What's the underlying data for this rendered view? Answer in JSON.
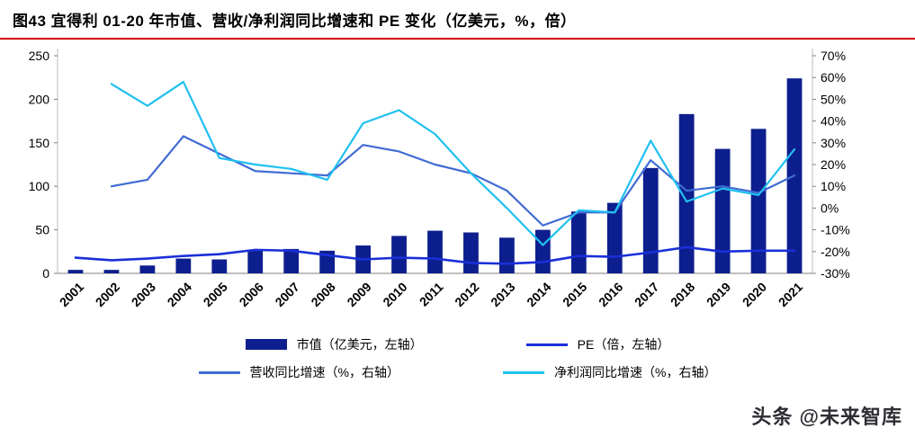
{
  "title": "图43 宜得利 01-20 年市值、营收/净利润同比增速和 PE 变化（亿美元，%，倍）",
  "watermark": "头条 @未来智库",
  "colors": {
    "title_underline": "#d40000",
    "axis_line": "#7f7f7f",
    "bar": "#0d1f8e",
    "pe_line": "#1a2fd8",
    "revenue_line": "#3f6bd4",
    "profit_line": "#20c0f0"
  },
  "chart_data": {
    "type": "combo",
    "categories": [
      "2001",
      "2002",
      "2003",
      "2004",
      "2005",
      "2006",
      "2007",
      "2008",
      "2009",
      "2010",
      "2011",
      "2012",
      "2013",
      "2014",
      "2015",
      "2016",
      "2017",
      "2018",
      "2019",
      "2020",
      "2021"
    ],
    "series": [
      {
        "name": "市值（亿美元，左轴）",
        "type": "bar",
        "axis": "left",
        "color": "#0d1f8e",
        "values": [
          4,
          4,
          9,
          17,
          16,
          27,
          28,
          26,
          32,
          43,
          49,
          47,
          41,
          50,
          71,
          81,
          121,
          183,
          143,
          166,
          224
        ]
      },
      {
        "name": "PE（倍，左轴）",
        "type": "line",
        "axis": "left",
        "color": "#1a2fd8",
        "values": [
          18,
          15,
          17,
          20,
          22,
          27,
          26,
          21,
          16,
          18,
          17,
          12,
          11,
          13,
          20,
          19,
          24,
          30,
          25,
          26,
          26
        ]
      },
      {
        "name": "营收同比增速（%，右轴）",
        "type": "line",
        "axis": "right",
        "color": "#3f6bd4",
        "values": [
          null,
          10,
          13,
          33,
          25,
          17,
          16,
          15,
          29,
          26,
          20,
          16,
          8,
          -8,
          -2,
          -2,
          22,
          8,
          10,
          7,
          15
        ]
      },
      {
        "name": "净利润同比增速（%，右轴）",
        "type": "line",
        "axis": "right",
        "color": "#20c0f0",
        "values": [
          null,
          57,
          47,
          58,
          23,
          20,
          18,
          13,
          39,
          45,
          34,
          16,
          0,
          -17,
          -1,
          -2,
          31,
          3,
          9,
          6,
          27
        ]
      }
    ],
    "left_axis": {
      "min": 0,
      "max": 250,
      "step": 50,
      "suffix": ""
    },
    "right_axis": {
      "min": -30,
      "max": 70,
      "step": 10,
      "suffix": "%"
    },
    "grid": false,
    "legend_position": "bottom",
    "x_label_rotation": -45
  }
}
